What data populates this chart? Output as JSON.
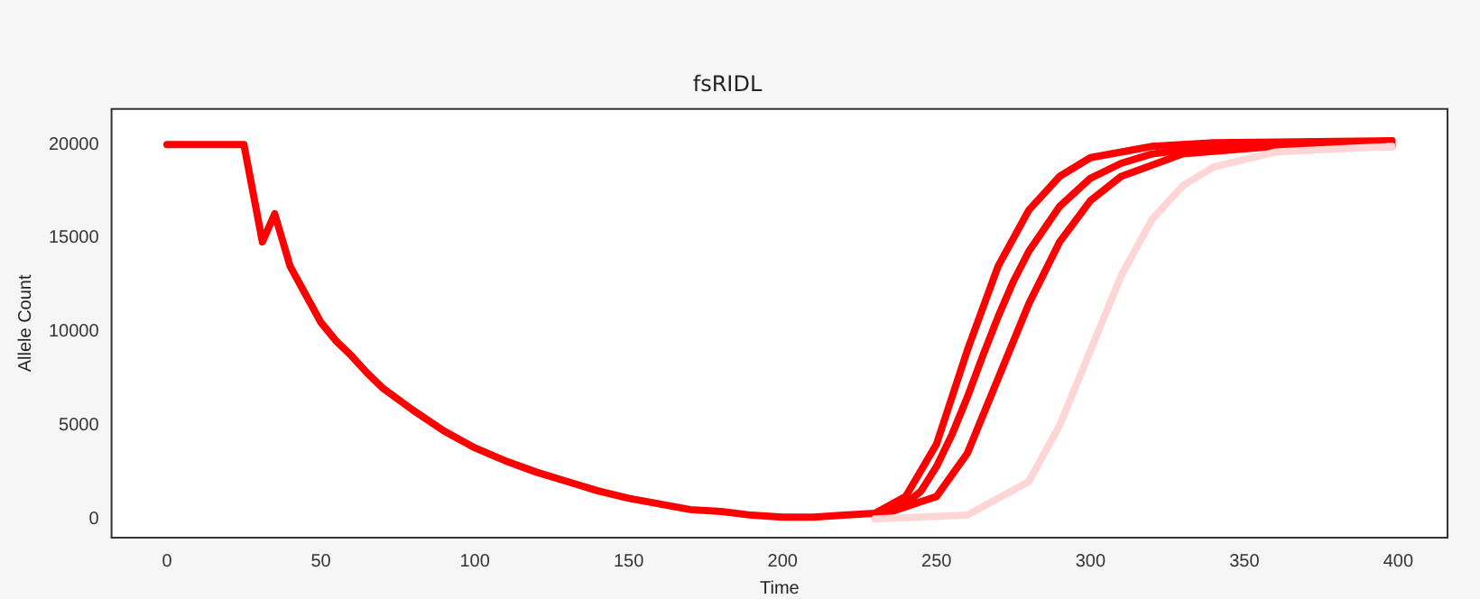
{
  "chart_data": {
    "type": "line",
    "title": "fsRIDL",
    "xlabel": "Time",
    "ylabel": "Allele Count",
    "xlim": [
      -18,
      416
    ],
    "xticks": [
      0,
      50,
      100,
      150,
      200,
      250,
      300,
      350,
      400
    ],
    "ylim": [
      -1000,
      21900
    ],
    "yticks": [
      0,
      5000,
      10000,
      15000,
      20000
    ],
    "grid": false,
    "legend": false,
    "marker": "none",
    "line_style": "solid",
    "series": [
      {
        "color": "#ffd6d6",
        "x": [
          230,
          260,
          280,
          290,
          300,
          310,
          320,
          330,
          340,
          360,
          398
        ],
        "values": [
          0,
          200,
          2000,
          5000,
          9000,
          13000,
          16000,
          17800,
          18800,
          19600,
          19900
        ]
      },
      {
        "color": "#ff0000",
        "x": [
          230,
          250,
          260,
          270,
          280,
          290,
          300,
          310,
          330,
          360,
          398
        ],
        "values": [
          100,
          1200,
          3500,
          7500,
          11500,
          14800,
          17000,
          18300,
          19500,
          19900,
          19900
        ]
      },
      {
        "color": "#ff0000",
        "x": [
          0,
          25,
          31,
          35,
          40,
          45,
          50,
          55,
          60,
          65,
          70,
          80,
          90,
          100,
          110,
          120,
          130,
          140,
          150,
          160,
          170,
          180,
          190,
          200,
          210,
          220,
          230,
          240,
          245,
          250,
          255,
          260,
          265,
          270,
          275,
          280,
          290,
          300,
          310,
          320,
          340,
          360,
          398
        ],
        "values": [
          20000,
          20000,
          14800,
          16300,
          13500,
          12000,
          10500,
          9500,
          8700,
          7800,
          7000,
          5800,
          4700,
          3800,
          3100,
          2500,
          2000,
          1500,
          1100,
          800,
          500,
          400,
          200,
          100,
          100,
          200,
          300,
          800,
          1500,
          2800,
          4500,
          6500,
          8700,
          10800,
          12700,
          14300,
          16700,
          18200,
          19000,
          19500,
          19900,
          20000,
          20000
        ]
      },
      {
        "color": "#ff0000",
        "x": [
          230,
          240,
          250,
          260,
          270,
          280,
          290,
          300,
          320,
          340,
          398
        ],
        "values": [
          300,
          1200,
          4000,
          9000,
          13500,
          16500,
          18300,
          19300,
          19900,
          20100,
          20200
        ]
      }
    ]
  }
}
